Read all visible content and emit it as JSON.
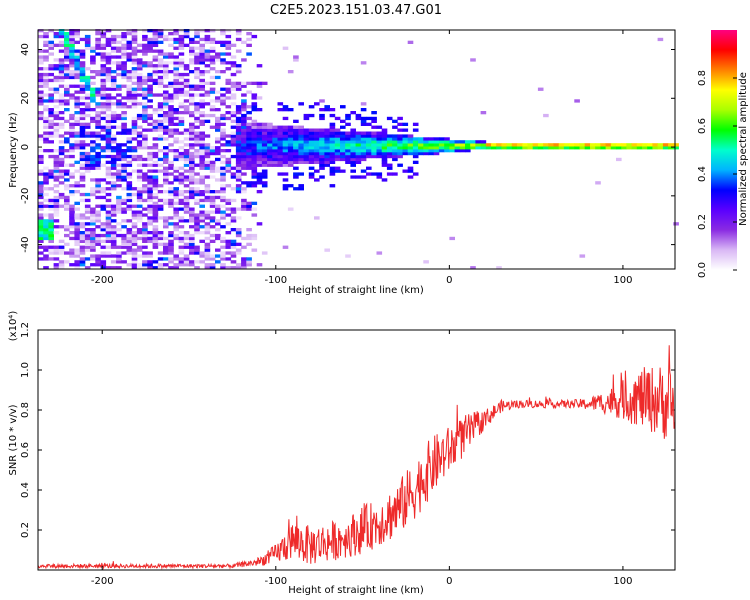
{
  "title": "C2E5.2023.151.03.47.G01",
  "chart_data": [
    {
      "type": "heatmap",
      "xlabel": "Height of straight line (km)",
      "ylabel": "Frequency (Hz)",
      "xlim": [
        -237,
        130
      ],
      "ylim": [
        -50,
        48
      ],
      "xticks": [
        -200,
        -100,
        0,
        100
      ],
      "yticks": [
        -40,
        -20,
        0,
        20,
        40
      ],
      "colorbar": {
        "label": "Normalized spectral amplitude",
        "range": [
          0,
          1
        ],
        "ticks": [
          0.0,
          0.2,
          0.4,
          0.6,
          0.8
        ],
        "colors": [
          "#ffffff",
          "#d9b8f5",
          "#8a2be2",
          "#5a00ff",
          "#0000ff",
          "#00b4ff",
          "#00ffcc",
          "#00ff00",
          "#aaff00",
          "#ffff00",
          "#ff8000",
          "#ff0000",
          "#ff0080"
        ]
      },
      "features": {
        "noise_region_x": [
          -237,
          -105
        ],
        "signal_line_frequency": 0,
        "signal_start_x": -125,
        "strong_signal_start_x": 20,
        "diagonal_streak": [
          [
            -225,
            48
          ],
          [
            -208,
            22
          ]
        ]
      }
    },
    {
      "type": "line",
      "xlabel": "Height of straight line (km)",
      "ylabel": "SNR (10 * v/v)",
      "scale_label": "(x10⁴)",
      "xlim": [
        -237,
        130
      ],
      "ylim": [
        0,
        1.2
      ],
      "xticks": [
        -200,
        -100,
        0,
        100
      ],
      "yticks": [
        0.2,
        0.4,
        0.6,
        0.8,
        1.0,
        1.2
      ],
      "line_color": "#ee2a2a",
      "series": [
        {
          "x": [
            -237,
            -200,
            -150,
            -125,
            -110,
            -100,
            -90,
            -80,
            -70,
            -60,
            -50,
            -40,
            -30,
            -20,
            -10,
            0,
            10,
            20,
            30,
            40,
            50,
            60,
            70,
            80,
            90,
            100,
            110,
            120,
            130
          ],
          "values": [
            0.02,
            0.02,
            0.02,
            0.02,
            0.04,
            0.08,
            0.15,
            0.12,
            0.14,
            0.16,
            0.2,
            0.24,
            0.3,
            0.4,
            0.52,
            0.6,
            0.68,
            0.75,
            0.82,
            0.83,
            0.83,
            0.83,
            0.83,
            0.83,
            0.84,
            0.85,
            0.86,
            0.85,
            0.82
          ],
          "noise_amplitude": [
            0.01,
            0.01,
            0.01,
            0.01,
            0.02,
            0.05,
            0.1,
            0.1,
            0.1,
            0.1,
            0.12,
            0.12,
            0.14,
            0.15,
            0.15,
            0.12,
            0.1,
            0.05,
            0.03,
            0.02,
            0.02,
            0.02,
            0.02,
            0.03,
            0.06,
            0.1,
            0.15,
            0.18,
            0.2
          ]
        }
      ]
    }
  ]
}
